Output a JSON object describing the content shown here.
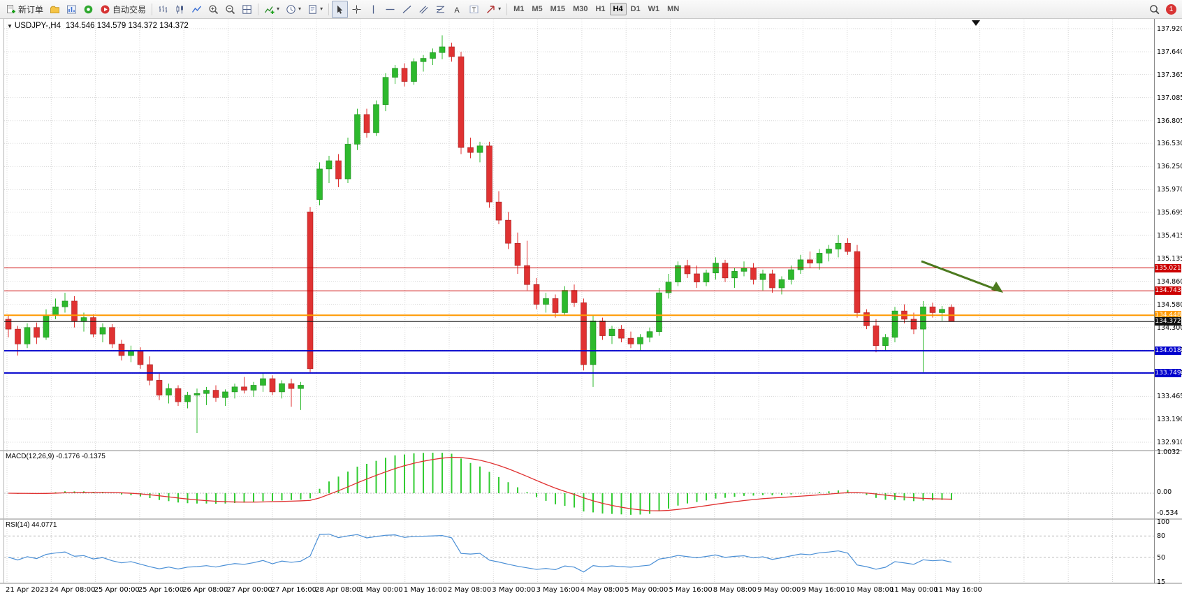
{
  "toolbar": {
    "new_order_label": "新订单",
    "auto_trading_label": "自动交易",
    "timeframes": [
      "M1",
      "M5",
      "M15",
      "M30",
      "H1",
      "H4",
      "D1",
      "W1",
      "MN"
    ],
    "active_timeframe": "H4",
    "notification_count": "1"
  },
  "header": {
    "symbol_label": "USDJPY-,H4",
    "ohlc_label": "134.546 134.579 134.372 134.372"
  },
  "indicators": {
    "macd_label": "MACD(12,26,9)",
    "macd_values": "-0.1776 -0.1375",
    "macd_axis": [
      "1.0032",
      "0.00",
      "-0.534"
    ],
    "rsi_label": "RSI(14)",
    "rsi_value": "44.0771",
    "rsi_axis": [
      "100",
      "80",
      "50",
      "15"
    ]
  },
  "chart_data": {
    "type": "candlestick",
    "symbol": "USDJPY-,H4",
    "timeframe": "H4",
    "up_color": "#2db92d",
    "down_color": "#e03232",
    "price_ticks": [
      "137.920",
      "137.640",
      "137.365",
      "137.085",
      "136.805",
      "136.530",
      "136.250",
      "135.970",
      "135.695",
      "135.415",
      "135.135",
      "134.860",
      "134.580",
      "134.300",
      "134.025",
      "133.745",
      "133.465",
      "133.190",
      "132.910"
    ],
    "time_labels": [
      "21 Apr 2023",
      "24 Apr 08:00",
      "25 Apr 00:00",
      "25 Apr 16:00",
      "26 Apr 08:00",
      "27 Apr 00:00",
      "27 Apr 16:00",
      "28 Apr 08:00",
      "1 May 00:00",
      "1 May 16:00",
      "2 May 08:00",
      "3 May 00:00",
      "3 May 16:00",
      "4 May 08:00",
      "5 May 00:00",
      "5 May 16:00",
      "8 May 08:00",
      "9 May 00:00",
      "9 May 16:00",
      "10 May 08:00",
      "11 May 00:00",
      "11 May 16:00"
    ],
    "hlines": [
      {
        "price": 135.021,
        "label": "135.021",
        "color": "#cc0000",
        "width": 1
      },
      {
        "price": 134.743,
        "label": "134.743",
        "color": "#cc0000",
        "width": 1
      },
      {
        "price": 134.448,
        "label": "134.448",
        "color": "#ff9900",
        "width": 2
      },
      {
        "price": 134.372,
        "label": "134.372",
        "color": "#111111",
        "width": 1
      },
      {
        "price": 134.018,
        "label": "134.018",
        "color": "#0000cd",
        "width": 2
      },
      {
        "price": 133.749,
        "label": "133.749",
        "color": "#0000cd",
        "width": 2
      }
    ],
    "candles": [
      [
        134.4,
        134.45,
        134.18,
        134.28
      ],
      [
        134.28,
        134.32,
        133.96,
        134.1
      ],
      [
        134.1,
        134.35,
        134.05,
        134.3
      ],
      [
        134.3,
        134.36,
        134.1,
        134.18
      ],
      [
        134.18,
        134.52,
        134.15,
        134.45
      ],
      [
        134.45,
        134.65,
        134.4,
        134.55
      ],
      [
        134.55,
        134.72,
        134.48,
        134.62
      ],
      [
        134.62,
        134.68,
        134.3,
        134.38
      ],
      [
        134.38,
        134.48,
        134.25,
        134.42
      ],
      [
        134.42,
        134.46,
        134.18,
        134.22
      ],
      [
        134.22,
        134.35,
        134.12,
        134.3
      ],
      [
        134.3,
        134.34,
        134.05,
        134.1
      ],
      [
        134.1,
        134.15,
        133.9,
        133.96
      ],
      [
        133.96,
        134.08,
        133.88,
        134.02
      ],
      [
        134.02,
        134.06,
        133.8,
        133.85
      ],
      [
        133.85,
        133.95,
        133.6,
        133.66
      ],
      [
        133.66,
        133.74,
        133.42,
        133.48
      ],
      [
        133.48,
        133.62,
        133.38,
        133.56
      ],
      [
        133.56,
        133.6,
        133.35,
        133.4
      ],
      [
        133.4,
        133.52,
        133.32,
        133.48
      ],
      [
        133.48,
        133.56,
        133.02,
        133.5
      ],
      [
        133.5,
        133.58,
        133.36,
        133.54
      ],
      [
        133.54,
        133.6,
        133.4,
        133.45
      ],
      [
        133.45,
        133.55,
        133.35,
        133.52
      ],
      [
        133.52,
        133.62,
        133.44,
        133.58
      ],
      [
        133.58,
        133.7,
        133.5,
        133.54
      ],
      [
        133.54,
        133.64,
        133.46,
        133.6
      ],
      [
        133.6,
        133.75,
        133.52,
        133.68
      ],
      [
        133.68,
        133.72,
        133.48,
        133.52
      ],
      [
        133.52,
        133.66,
        133.44,
        133.62
      ],
      [
        133.62,
        133.68,
        133.34,
        133.56
      ],
      [
        133.56,
        133.64,
        133.3,
        133.6
      ],
      [
        135.7,
        135.76,
        133.76,
        133.8
      ],
      [
        135.85,
        136.3,
        135.78,
        136.22
      ],
      [
        136.22,
        136.38,
        136.05,
        136.32
      ],
      [
        136.32,
        136.4,
        136.0,
        136.1
      ],
      [
        136.1,
        136.6,
        136.05,
        136.52
      ],
      [
        136.52,
        136.95,
        136.45,
        136.88
      ],
      [
        136.88,
        136.95,
        136.6,
        136.66
      ],
      [
        136.66,
        137.05,
        136.62,
        137.0
      ],
      [
        137.0,
        137.38,
        136.92,
        137.33
      ],
      [
        137.33,
        137.48,
        137.25,
        137.44
      ],
      [
        137.44,
        137.5,
        137.22,
        137.28
      ],
      [
        137.28,
        137.56,
        137.24,
        137.52
      ],
      [
        137.52,
        137.6,
        137.4,
        137.56
      ],
      [
        137.56,
        137.68,
        137.48,
        137.63
      ],
      [
        137.63,
        137.84,
        137.55,
        137.7
      ],
      [
        137.7,
        137.75,
        137.52,
        137.58
      ],
      [
        137.58,
        137.64,
        136.4,
        136.48
      ],
      [
        136.48,
        136.6,
        136.35,
        136.42
      ],
      [
        136.42,
        136.55,
        136.3,
        136.5
      ],
      [
        136.5,
        136.55,
        135.75,
        135.82
      ],
      [
        135.82,
        135.95,
        135.55,
        135.6
      ],
      [
        135.6,
        135.7,
        135.25,
        135.32
      ],
      [
        135.32,
        135.45,
        134.95,
        135.05
      ],
      [
        135.05,
        135.35,
        134.75,
        134.82
      ],
      [
        134.82,
        134.9,
        134.52,
        134.58
      ],
      [
        134.58,
        134.72,
        134.48,
        134.65
      ],
      [
        134.65,
        134.7,
        134.42,
        134.48
      ],
      [
        134.48,
        134.8,
        134.45,
        134.75
      ],
      [
        134.75,
        134.82,
        134.55,
        134.6
      ],
      [
        134.6,
        134.65,
        133.78,
        133.85
      ],
      [
        133.85,
        134.45,
        133.58,
        134.38
      ],
      [
        134.38,
        134.42,
        134.15,
        134.2
      ],
      [
        134.2,
        134.32,
        134.1,
        134.28
      ],
      [
        134.28,
        134.33,
        134.12,
        134.17
      ],
      [
        134.17,
        134.25,
        134.05,
        134.1
      ],
      [
        134.1,
        134.22,
        134.02,
        134.18
      ],
      [
        134.18,
        134.3,
        134.12,
        134.25
      ],
      [
        134.25,
        134.78,
        134.2,
        134.72
      ],
      [
        134.72,
        134.95,
        134.65,
        134.85
      ],
      [
        134.85,
        135.1,
        134.8,
        135.05
      ],
      [
        135.05,
        135.12,
        134.9,
        134.95
      ],
      [
        134.95,
        135.05,
        134.78,
        134.85
      ],
      [
        134.85,
        135.0,
        134.8,
        134.96
      ],
      [
        134.96,
        135.15,
        134.88,
        135.08
      ],
      [
        135.08,
        135.12,
        134.85,
        134.9
      ],
      [
        134.9,
        135.02,
        134.78,
        134.98
      ],
      [
        134.98,
        135.1,
        134.92,
        135.02
      ],
      [
        135.02,
        135.08,
        134.82,
        134.88
      ],
      [
        134.88,
        135.0,
        134.75,
        134.95
      ],
      [
        134.95,
        135.0,
        134.72,
        134.78
      ],
      [
        134.78,
        134.92,
        134.7,
        134.88
      ],
      [
        134.88,
        135.05,
        134.82,
        135.0
      ],
      [
        135.0,
        135.18,
        134.95,
        135.12
      ],
      [
        135.12,
        135.22,
        135.02,
        135.08
      ],
      [
        135.08,
        135.25,
        135.0,
        135.2
      ],
      [
        135.2,
        135.3,
        135.1,
        135.25
      ],
      [
        135.25,
        135.42,
        135.15,
        135.32
      ],
      [
        135.32,
        135.38,
        135.18,
        135.22
      ],
      [
        135.22,
        135.3,
        134.42,
        134.48
      ],
      [
        134.48,
        134.52,
        134.28,
        134.32
      ],
      [
        134.32,
        134.4,
        134.0,
        134.08
      ],
      [
        134.08,
        134.22,
        134.02,
        134.18
      ],
      [
        134.18,
        134.55,
        134.12,
        134.5
      ],
      [
        134.5,
        134.58,
        134.35,
        134.4
      ],
      [
        134.4,
        134.48,
        134.22,
        134.28
      ],
      [
        134.28,
        134.62,
        133.76,
        134.55
      ],
      [
        134.55,
        134.6,
        134.42,
        134.48
      ],
      [
        134.48,
        134.56,
        134.38,
        134.52
      ],
      [
        134.546,
        134.579,
        134.372,
        134.372
      ]
    ],
    "macd": {
      "fast": 12,
      "slow": 26,
      "signal": 9,
      "hist_color": "#33cc33",
      "signal_color": "#e03232",
      "max": 1.0032,
      "min": -0.534
    },
    "rsi": {
      "period": 14,
      "color": "#4a8fd6",
      "levels": [
        80,
        50
      ],
      "max": 100,
      "min": 15
    },
    "annotation_arrow": {
      "color": "#4c7a1f"
    }
  }
}
